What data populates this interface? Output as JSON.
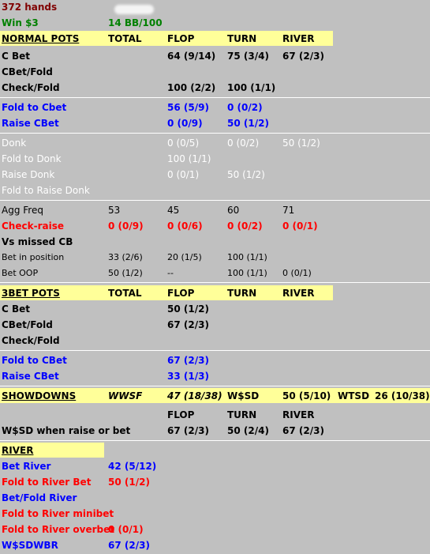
{
  "summary": {
    "hands": "372 hands",
    "win": "Win $3",
    "bb": "14 BB/100"
  },
  "normal": {
    "header": {
      "title": "NORMAL POTS",
      "total": "TOTAL",
      "flop": "FLOP",
      "turn": "TURN",
      "river": "RIVER"
    },
    "cbet": {
      "label": "C Bet",
      "flop": "64 (9/14)",
      "turn": "75 (3/4)",
      "river": "67 (2/3)"
    },
    "cbet_fold": {
      "label": "CBet/Fold"
    },
    "check_fold": {
      "label": "Check/Fold",
      "flop": "100 (2/2)",
      "turn": "100 (1/1)"
    },
    "fold_to_cbet": {
      "label": "Fold to Cbet",
      "flop": "56 (5/9)",
      "turn": "0 (0/2)"
    },
    "raise_cbet": {
      "label": "Raise CBet",
      "flop": "0 (0/9)",
      "turn": "50 (1/2)"
    },
    "donk": {
      "label": "Donk",
      "flop": "0 (0/5)",
      "turn": "0 (0/2)",
      "river": "50 (1/2)"
    },
    "fold_to_donk": {
      "label": "Fold to Donk",
      "flop": "100 (1/1)"
    },
    "raise_donk": {
      "label": "Raise Donk",
      "flop": "0 (0/1)",
      "turn": "50 (1/2)"
    },
    "fold_to_raise_donk": {
      "label": "Fold to Raise Donk"
    },
    "agg_freq": {
      "label": "Agg Freq",
      "total": "53",
      "flop": "45",
      "turn": "60",
      "river": "71"
    },
    "check_raise": {
      "label": "Check-raise",
      "total": "0 (0/9)",
      "flop": "0 (0/6)",
      "turn": "0 (0/2)",
      "river": "0 (0/1)"
    },
    "vs_missed_cb": {
      "label": "Vs missed CB"
    },
    "bet_in_position": {
      "label": "Bet in position",
      "total": "33 (2/6)",
      "flop": "20 (1/5)",
      "turn": "100 (1/1)"
    },
    "bet_oop": {
      "label": "Bet OOP",
      "total": "50 (1/2)",
      "flop": "--",
      "turn": "100 (1/1)",
      "river": "0 (0/1)"
    }
  },
  "threebet": {
    "header": {
      "title": "3BET POTS",
      "total": "TOTAL",
      "flop": "FLOP",
      "turn": "TURN",
      "river": "RIVER"
    },
    "cbet": {
      "label": "C Bet",
      "flop": "50 (1/2)"
    },
    "cbet_fold": {
      "label": "CBet/Fold",
      "flop": "67 (2/3)"
    },
    "check_fold": {
      "label": "Check/Fold"
    },
    "fold_to_cbet": {
      "label": "Fold to CBet",
      "flop": "67 (2/3)"
    },
    "raise_cbet": {
      "label": "Raise CBet",
      "flop": "33 (1/3)"
    }
  },
  "showdowns": {
    "header": {
      "title": "SHOWDOWNS",
      "wwsf_label": "WWSF",
      "wwsf_value": "47 (18/38)",
      "wsd_label": "W$SD",
      "wsd_value": "50 (5/10)",
      "wtsd_label": "WTSD",
      "wtsd_value": "26 (10/38)"
    },
    "sub": {
      "flop": "FLOP",
      "turn": "TURN",
      "river": "RIVER"
    },
    "wsd_raise": {
      "label": "W$SD when raise or bet",
      "flop": "67 (2/3)",
      "turn": "50 (2/4)",
      "river": "67 (2/3)"
    }
  },
  "river": {
    "header": {
      "title": "RIVER"
    },
    "bet_river": {
      "label": "Bet River",
      "value": "42 (5/12)"
    },
    "fold_to_river_bet": {
      "label": "Fold to River Bet",
      "value": "50 (1/2)"
    },
    "bet_fold_river": {
      "label": "Bet/Fold River"
    },
    "fold_to_river_minibet": {
      "label": "Fold to River minibet"
    },
    "fold_to_river_overbet": {
      "label": "Fold to River overbet",
      "value": "0 (0/1)"
    },
    "wsdwbr": {
      "label": "W$SDWBR",
      "value": "67 (2/3)"
    }
  },
  "colors": {
    "background": "#c0c0c0",
    "header_bg": "#ffff99",
    "blue": "#0000ff",
    "red": "#ff0000",
    "green": "#008000",
    "dark_red": "#800000"
  }
}
